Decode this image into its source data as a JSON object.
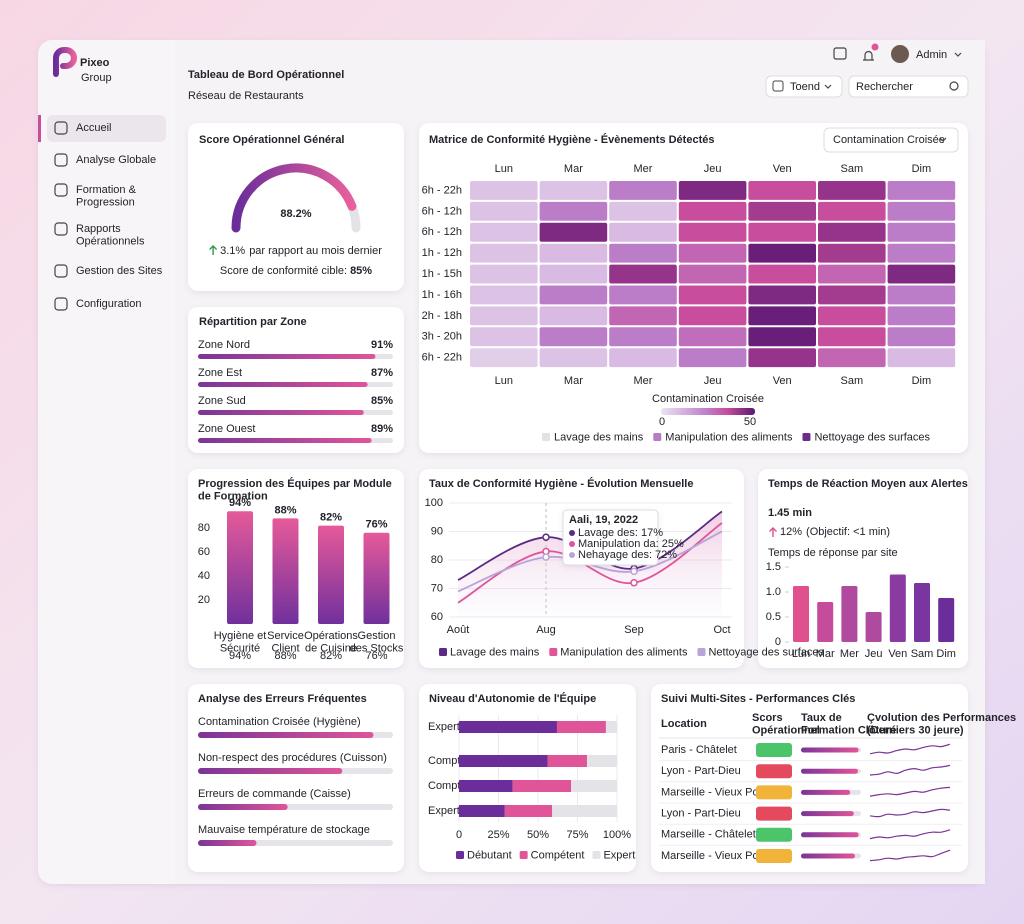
{
  "brand": {
    "name": "Pixeo",
    "sub": "Group"
  },
  "topbar": {
    "user": "Admin",
    "filter": "Toend",
    "search": "Rechercher"
  },
  "nav": {
    "items": [
      "Accueil",
      "Analyse Globale",
      "Formation & Progression",
      "Rapports Opérationnels",
      "Gestion des Sites",
      "Configuration"
    ],
    "active": 0
  },
  "header": {
    "title": "Tableau de Bord Opérationnel",
    "subtitle": "Réseau de Restaurants"
  },
  "score": {
    "title": "Score Opérationnel Général",
    "value": 88.2,
    "value_label": "88.2%",
    "change": "3.1%",
    "change_text": "par rapport au mois dernier",
    "target_text": "Score de conformité cible:",
    "target": "85%"
  },
  "zones": {
    "title": "Répartition par Zone",
    "categories": [
      "Zone Nord",
      "Zone Est",
      "Zone Sud",
      "Zone Ouest"
    ],
    "values": [
      91,
      87,
      85,
      89
    ],
    "value_labels": [
      "91%",
      "87%",
      "85%",
      "89%"
    ]
  },
  "heatmap": {
    "title": "Matrice de Conformité Hygiène - Évènements Détectés",
    "dropdown": "Contamination Croisée",
    "days": [
      "Lun",
      "Mar",
      "Mer",
      "Jeu",
      "Ven",
      "Sam",
      "Dim"
    ],
    "hours": [
      "6h - 22h",
      "6h - 12h",
      "6h - 12h",
      "1h - 12h",
      "1h - 15h",
      "1h - 16h",
      "2h - 18h",
      "3h - 20h",
      "6h - 22h"
    ],
    "values": [
      [
        8,
        8,
        25,
        45,
        35,
        42,
        25
      ],
      [
        8,
        25,
        8,
        35,
        40,
        35,
        25
      ],
      [
        8,
        45,
        10,
        35,
        35,
        42,
        25
      ],
      [
        8,
        10,
        25,
        30,
        48,
        40,
        25
      ],
      [
        8,
        10,
        42,
        30,
        35,
        30,
        45
      ],
      [
        8,
        25,
        25,
        35,
        45,
        40,
        25
      ],
      [
        8,
        10,
        30,
        35,
        48,
        35,
        25
      ],
      [
        8,
        25,
        25,
        28,
        48,
        35,
        25
      ],
      [
        5,
        8,
        10,
        25,
        42,
        30,
        10
      ]
    ],
    "colorbar_title": "Contamination Croisée",
    "colorbar_lim": [
      0,
      50
    ],
    "legend": [
      {
        "name": "Lavage des mains",
        "color": "#e2e2e6"
      },
      {
        "name": "Manipulation des aliments",
        "color": "#b77cc4"
      },
      {
        "name": "Nettoyage des surfaces",
        "color": "#6a2d8a"
      }
    ]
  },
  "progression": {
    "title": "Progression des Équipes par Module de Formation",
    "categories": [
      "Hygiène et Sécurité",
      "Service Client",
      "Opérations de Cuisine",
      "Gestion des Stocks"
    ],
    "values": [
      94,
      88,
      82,
      76
    ],
    "value_labels": [
      "94%",
      "88%",
      "82%",
      "76%"
    ],
    "ylim": [
      0,
      100
    ],
    "yticks": [
      20,
      40,
      60,
      80
    ]
  },
  "trend": {
    "title": "Taux de Conformité Hygiène - Évolution Mensuelle",
    "categories": [
      "Août",
      "Aug",
      "Sep",
      "Oct"
    ],
    "ylim": [
      60,
      100
    ],
    "yticks": [
      60,
      70,
      80,
      90,
      100
    ],
    "series": [
      {
        "name": "Lavage des mains",
        "color": "#5b2a86",
        "values": [
          73,
          88,
          77,
          97
        ]
      },
      {
        "name": "Manipulation des aliments",
        "color": "#e0559a",
        "values": [
          65,
          83,
          72,
          93
        ]
      },
      {
        "name": "Nettoyage des surfaces",
        "color": "#b9a4d8",
        "values": [
          69,
          81,
          76,
          90
        ]
      }
    ],
    "tooltip": {
      "date": "Aali, 19, 2022",
      "lines": [
        "Lavage des: 17%",
        "Manipulation da: 25%",
        "Nehayage des: 72%"
      ]
    }
  },
  "reaction": {
    "title": "Temps de Réaction Moyen aux Alertes",
    "value": "1.45 min",
    "change": "12%",
    "change_text": "(Objectif: <1 min)",
    "subtitle": "Temps de réponse par site",
    "categories": [
      "Lun",
      "Mar",
      "Mer",
      "Jeu",
      "Ven",
      "Sam",
      "Dim"
    ],
    "values": [
      1.12,
      0.8,
      1.12,
      0.6,
      1.35,
      1.18,
      0.88
    ],
    "colors": [
      "#e0508f",
      "#c54b9b",
      "#b04a9e",
      "#b04a9e",
      "#8a3aa0",
      "#7a35a0",
      "#6a2d9a"
    ],
    "ylim": [
      0,
      1.5
    ],
    "yticks": [
      0,
      0.5,
      {
        "value": 1,
        "label": "1.0"
      },
      1.5
    ]
  },
  "errors": {
    "title": "Analyse des Erreurs Fréquentes",
    "categories": [
      "Contamination Croisée (Hygiène)",
      "Non-respect des procédures (Cuisson)",
      "Erreurs de commande (Caisse)",
      "Mauvaise température de stockage"
    ],
    "values": [
      90,
      74,
      46,
      30
    ]
  },
  "autonomy": {
    "title": "Niveau d'Autonomie de l'Équipe",
    "categories": [
      "Expert",
      "Compt",
      "Compt",
      "Expert"
    ],
    "series": [
      {
        "name": "Débutant",
        "color": "#6a2d9a",
        "values": [
          62,
          56,
          34,
          29
        ]
      },
      {
        "name": "Compétent",
        "color": "#e0559a",
        "values": [
          31,
          25,
          37,
          30
        ]
      },
      {
        "name": "Expert",
        "color": "#e4e4e8",
        "values": [
          7,
          19,
          29,
          41
        ]
      }
    ],
    "xlim": [
      0,
      100
    ],
    "xticks": [
      0,
      {
        "value": 25,
        "label": "25%"
      },
      {
        "value": 50,
        "label": "50%"
      },
      {
        "value": 75,
        "label": "75%"
      },
      {
        "value": 100,
        "label": "100%"
      }
    ]
  },
  "sites": {
    "title": "Suivi Multi-Sites - Performances Clés",
    "columns": [
      "Location",
      "Scors Opérationnel",
      "Taux de Formation Clôturé",
      "Çvolution des Performances (Derniers 30 jeure)"
    ],
    "rows": [
      {
        "name": "Paris - Châtelet",
        "status": "#4cc46a",
        "formation": 96,
        "trend": [
          2,
          3,
          2.5,
          4,
          5,
          4.5,
          6,
          7,
          6.5,
          8
        ]
      },
      {
        "name": "Lyon - Part-Dieu",
        "status": "#e4495e",
        "formation": 95,
        "trend": [
          2,
          2.5,
          4,
          3,
          5,
          6,
          5,
          6.5,
          7,
          8
        ]
      },
      {
        "name": "Marseille - Vieux Port",
        "status": "#f2b33a",
        "formation": 82,
        "trend": [
          2,
          3,
          3.5,
          3,
          4,
          5,
          4.5,
          6,
          7,
          7.5
        ]
      },
      {
        "name": "Lyon - Part-Dieu",
        "status": "#e4495e",
        "formation": 88,
        "trend": [
          3,
          2.5,
          4,
          3.5,
          4,
          5.5,
          5,
          6,
          7,
          6.5
        ]
      },
      {
        "name": "Marseille - Châtelet",
        "status": "#4cc46a",
        "formation": 96,
        "trend": [
          2,
          3,
          2.5,
          3.5,
          4,
          3.5,
          5,
          6,
          6,
          7.5
        ]
      },
      {
        "name": "Marseille - Vieux Port",
        "status": "#f2b33a",
        "formation": 90,
        "trend": [
          1.5,
          2,
          3,
          2.5,
          3.5,
          4,
          4.5,
          4,
          6,
          8
        ]
      }
    ]
  }
}
